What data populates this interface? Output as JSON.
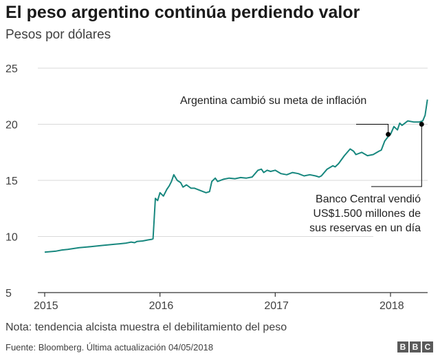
{
  "header": {
    "title": "El peso argentino continúa perdiendo valor",
    "subtitle": "Pesos por dólares"
  },
  "chart_data": {
    "type": "line",
    "title": "El peso argentino continúa perdiendo valor",
    "subtitle": "Pesos por dólares",
    "ylim": [
      5,
      25
    ],
    "yticks": [
      5,
      10,
      15,
      20,
      25
    ],
    "xlim": [
      2015.0,
      2018.33
    ],
    "xticks": [
      "2015",
      "2016",
      "2017",
      "2018"
    ],
    "grid": "horizontal",
    "colors": {
      "line": "#17877e",
      "grid": "#d9d9d9",
      "axis": "#333333",
      "marker": "#000000"
    },
    "series": [
      {
        "x": [
          2015.0,
          2015.05,
          2015.1,
          2015.15,
          2015.2,
          2015.3,
          2015.4,
          2015.5,
          2015.6,
          2015.65,
          2015.7,
          2015.75,
          2015.78,
          2015.8,
          2015.85,
          2015.9,
          2015.93,
          2015.94,
          2015.96,
          2015.98,
          2016.0,
          2016.03,
          2016.06,
          2016.08,
          2016.1,
          2016.12,
          2016.15,
          2016.18,
          2016.2,
          2016.23,
          2016.27,
          2016.3,
          2016.35,
          2016.4,
          2016.43,
          2016.45,
          2016.48,
          2016.5,
          2016.55,
          2016.6,
          2016.65,
          2016.7,
          2016.75,
          2016.8,
          2016.85,
          2016.88,
          2016.9,
          2016.93,
          2016.96,
          2017.0,
          2017.05,
          2017.1,
          2017.15,
          2017.2,
          2017.25,
          2017.3,
          2017.35,
          2017.38,
          2017.4,
          2017.45,
          2017.5,
          2017.52,
          2017.55,
          2017.6,
          2017.65,
          2017.68,
          2017.7,
          2017.75,
          2017.8,
          2017.85,
          2017.9,
          2017.92,
          2017.95,
          2017.98,
          2018.0,
          2018.03,
          2018.06,
          2018.08,
          2018.1,
          2018.15,
          2018.2,
          2018.25,
          2018.28,
          2018.3,
          2018.32
        ],
        "values": [
          8.6,
          8.65,
          8.7,
          8.8,
          8.85,
          9.0,
          9.1,
          9.2,
          9.3,
          9.35,
          9.4,
          9.5,
          9.45,
          9.55,
          9.6,
          9.7,
          9.75,
          9.8,
          13.4,
          13.2,
          13.9,
          13.6,
          14.2,
          14.5,
          14.9,
          15.5,
          15.0,
          14.8,
          14.4,
          14.6,
          14.3,
          14.3,
          14.1,
          13.9,
          14.0,
          14.9,
          15.2,
          14.9,
          15.1,
          15.2,
          15.15,
          15.25,
          15.2,
          15.3,
          15.9,
          16.0,
          15.7,
          15.9,
          15.8,
          15.9,
          15.6,
          15.5,
          15.7,
          15.6,
          15.4,
          15.5,
          15.4,
          15.3,
          15.4,
          16.0,
          16.3,
          16.2,
          16.5,
          17.2,
          17.8,
          17.6,
          17.3,
          17.5,
          17.2,
          17.3,
          17.6,
          17.7,
          18.5,
          18.9,
          19.1,
          19.8,
          19.5,
          20.1,
          19.9,
          20.3,
          20.2,
          20.2,
          20.3,
          20.8,
          22.2
        ]
      }
    ],
    "annotations": [
      {
        "text": "Argentina cambió su meta de inflación",
        "x": 2017.98,
        "y": 19.1
      },
      {
        "lines": [
          "Banco Central vendió",
          "US$1.500 millones de",
          "sus reservas en un día"
        ],
        "x": 2018.27,
        "y": 20.0
      }
    ]
  },
  "footer": {
    "note": "Nota: tendencia alcista muestra el debilitamiento del peso",
    "source": "Fuente: Bloomberg. Última actualización 04/05/2018",
    "logo_letters": [
      "B",
      "B",
      "C"
    ]
  }
}
